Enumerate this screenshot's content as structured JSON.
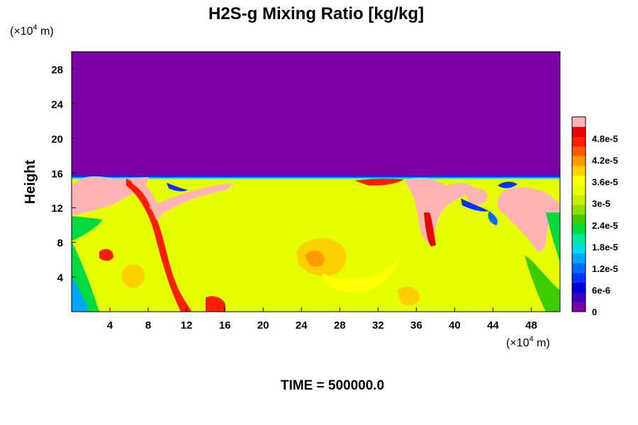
{
  "chart_data": {
    "type": "heatmap",
    "title": "H2S-g Mixing Ratio [kg/kg]",
    "xlabel": "",
    "ylabel": "Height",
    "x_unit_label": "(×10",
    "x_unit_exp": "4",
    "x_unit_tail": " m)",
    "y_unit_label": "(×10",
    "y_unit_exp": "4",
    "y_unit_tail": " m)",
    "xlim": [
      0,
      51
    ],
    "ylim": [
      0,
      30
    ],
    "x_ticks": [
      4,
      8,
      12,
      16,
      20,
      24,
      28,
      32,
      36,
      40,
      44,
      48
    ],
    "y_ticks": [
      4,
      8,
      12,
      16,
      20,
      24,
      28
    ],
    "colorbar": {
      "labels": [
        "0",
        "6e-6",
        "1.2e-5",
        "1.8e-5",
        "2.4e-5",
        "3e-5",
        "3.6e-5",
        "4.2e-5",
        "4.8e-5"
      ],
      "label_values": [
        0,
        6e-06,
        1.2e-05,
        1.8e-05,
        2.4e-05,
        3e-05,
        3.6e-05,
        4.2e-05,
        4.8e-05
      ],
      "max": 5.4e-05,
      "colors": [
        "#7b00a6",
        "#3d00b8",
        "#0000d6",
        "#0032ff",
        "#006bff",
        "#00a6ff",
        "#00d9e8",
        "#00e6a0",
        "#00d940",
        "#3ccc00",
        "#8ce000",
        "#c6f000",
        "#e6ff00",
        "#ffff00",
        "#ffd000",
        "#ff9a00",
        "#ff5a00",
        "#ff1e00",
        "#e60000",
        "#ffb4b4"
      ]
    },
    "background_value": 0,
    "fluid_top_height": 15.5,
    "fluid_region": {
      "x": [
        0,
        51
      ],
      "y": [
        0,
        15.5
      ],
      "dominant_value": 3.3e-05
    }
  },
  "footer": {
    "time_label": "TIME = 500000.0"
  }
}
